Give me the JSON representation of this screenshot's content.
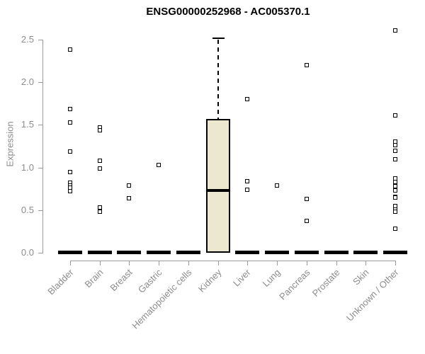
{
  "title": "ENSG00000252968 - AC005370.1",
  "colors": {
    "box_fill": "#ece8cf",
    "box_border": "#000000",
    "axis": "#9a9a9a",
    "label_gray": "#8c8c8c",
    "title_color": "#000000"
  },
  "chart_data": {
    "type": "boxplot",
    "title": "ENSG00000252968 - AC005370.1",
    "xlabel": "",
    "ylabel": "Expression",
    "ylim": [
      -0.05,
      2.65
    ],
    "yticks": [
      "0.0",
      "0.5",
      "1.0",
      "1.5",
      "2.0",
      "2.5"
    ],
    "grid": false,
    "legend": false,
    "categories": [
      "Bladder",
      "Brain",
      "Breast",
      "Gastric",
      "Hematopoietic cells",
      "Kidney",
      "Liver",
      "Lung",
      "Pancreas",
      "Prostate",
      "Skin",
      "Unknown / Other"
    ],
    "groups": [
      {
        "label": "Bladder",
        "box": {
          "q1": 0.0,
          "median": 0.0,
          "q3": 0.0,
          "whisker_low": 0.0,
          "whisker_high": 0.0
        },
        "outliers": [
          2.38,
          1.69,
          1.53,
          1.19,
          0.95,
          0.82,
          0.79,
          0.76,
          0.72
        ]
      },
      {
        "label": "Brain",
        "box": {
          "q1": 0.0,
          "median": 0.0,
          "q3": 0.0,
          "whisker_low": 0.0,
          "whisker_high": 0.0
        },
        "outliers": [
          1.47,
          1.44,
          1.08,
          0.99,
          0.53,
          0.48
        ]
      },
      {
        "label": "Breast",
        "box": {
          "q1": 0.0,
          "median": 0.0,
          "q3": 0.0,
          "whisker_low": 0.0,
          "whisker_high": 0.0
        },
        "outliers": [
          0.79,
          0.64
        ]
      },
      {
        "label": "Gastric",
        "box": {
          "q1": 0.0,
          "median": 0.0,
          "q3": 0.0,
          "whisker_low": 0.0,
          "whisker_high": 0.0
        },
        "outliers": [
          1.03
        ]
      },
      {
        "label": "Hematopoietic cells",
        "box": {
          "q1": 0.0,
          "median": 0.0,
          "q3": 0.0,
          "whisker_low": 0.0,
          "whisker_high": 0.0
        },
        "outliers": []
      },
      {
        "label": "Kidney",
        "box": {
          "q1": 0.0,
          "median": 0.73,
          "q3": 1.57,
          "whisker_low": 0.0,
          "whisker_high": 2.52
        },
        "outliers": []
      },
      {
        "label": "Liver",
        "box": {
          "q1": 0.0,
          "median": 0.0,
          "q3": 0.0,
          "whisker_low": 0.0,
          "whisker_high": 0.0
        },
        "outliers": [
          1.8,
          0.84,
          0.74
        ]
      },
      {
        "label": "Lung",
        "box": {
          "q1": 0.0,
          "median": 0.0,
          "q3": 0.0,
          "whisker_low": 0.0,
          "whisker_high": 0.0
        },
        "outliers": [
          0.79
        ]
      },
      {
        "label": "Pancreas",
        "box": {
          "q1": 0.0,
          "median": 0.0,
          "q3": 0.0,
          "whisker_low": 0.0,
          "whisker_high": 0.0
        },
        "outliers": [
          2.2,
          0.63,
          0.37
        ]
      },
      {
        "label": "Prostate",
        "box": {
          "q1": 0.0,
          "median": 0.0,
          "q3": 0.0,
          "whisker_low": 0.0,
          "whisker_high": 0.0
        },
        "outliers": []
      },
      {
        "label": "Skin",
        "box": {
          "q1": 0.0,
          "median": 0.0,
          "q3": 0.0,
          "whisker_low": 0.0,
          "whisker_high": 0.0
        },
        "outliers": []
      },
      {
        "label": "Unknown / Other",
        "box": {
          "q1": 0.0,
          "median": 0.0,
          "q3": 0.0,
          "whisker_low": 0.0,
          "whisker_high": 0.0
        },
        "outliers": [
          2.61,
          1.61,
          1.3,
          1.26,
          1.2,
          1.1,
          0.87,
          0.83,
          0.78,
          0.73,
          0.66,
          0.65,
          0.55,
          0.51,
          0.48,
          0.28
        ]
      }
    ]
  }
}
